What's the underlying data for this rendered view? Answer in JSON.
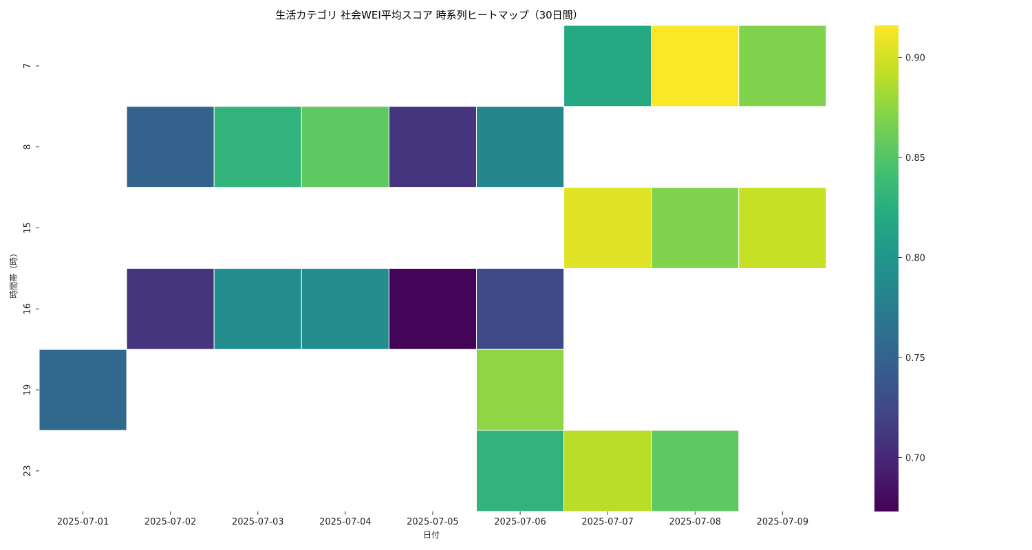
{
  "chart_data": {
    "type": "heatmap",
    "title": "生活カテゴリ 社会WEI平均スコア 時系列ヒートマップ（30日間）",
    "xlabel": "日付",
    "ylabel": "時間帯（時）",
    "x_categories": [
      "2025-07-01",
      "2025-07-02",
      "2025-07-03",
      "2025-07-04",
      "2025-07-05",
      "2025-07-06",
      "2025-07-07",
      "2025-07-08",
      "2025-07-09"
    ],
    "y_categories": [
      "7",
      "8",
      "15",
      "16",
      "19",
      "23"
    ],
    "values": [
      [
        null,
        null,
        null,
        null,
        null,
        null,
        0.82,
        0.915,
        0.87
      ],
      [
        null,
        0.75,
        0.83,
        0.855,
        0.71,
        0.785,
        null,
        null,
        null
      ],
      [
        null,
        null,
        null,
        null,
        null,
        null,
        0.905,
        0.87,
        0.895
      ],
      [
        null,
        0.71,
        0.79,
        0.79,
        0.675,
        0.725,
        null,
        null,
        null
      ],
      [
        0.755,
        null,
        null,
        null,
        null,
        0.875,
        null,
        null,
        null
      ],
      [
        null,
        null,
        null,
        null,
        null,
        0.83,
        0.89,
        0.855,
        null
      ]
    ],
    "colormap": "viridis",
    "colorbar": {
      "vmin": 0.673,
      "vmax": 0.916,
      "ticks": [
        0.7,
        0.75,
        0.8,
        0.85,
        0.9
      ],
      "tick_labels": [
        "0.70",
        "0.75",
        "0.80",
        "0.85",
        "0.90"
      ]
    },
    "grid": false,
    "cell_border_color": "#ffffff"
  }
}
